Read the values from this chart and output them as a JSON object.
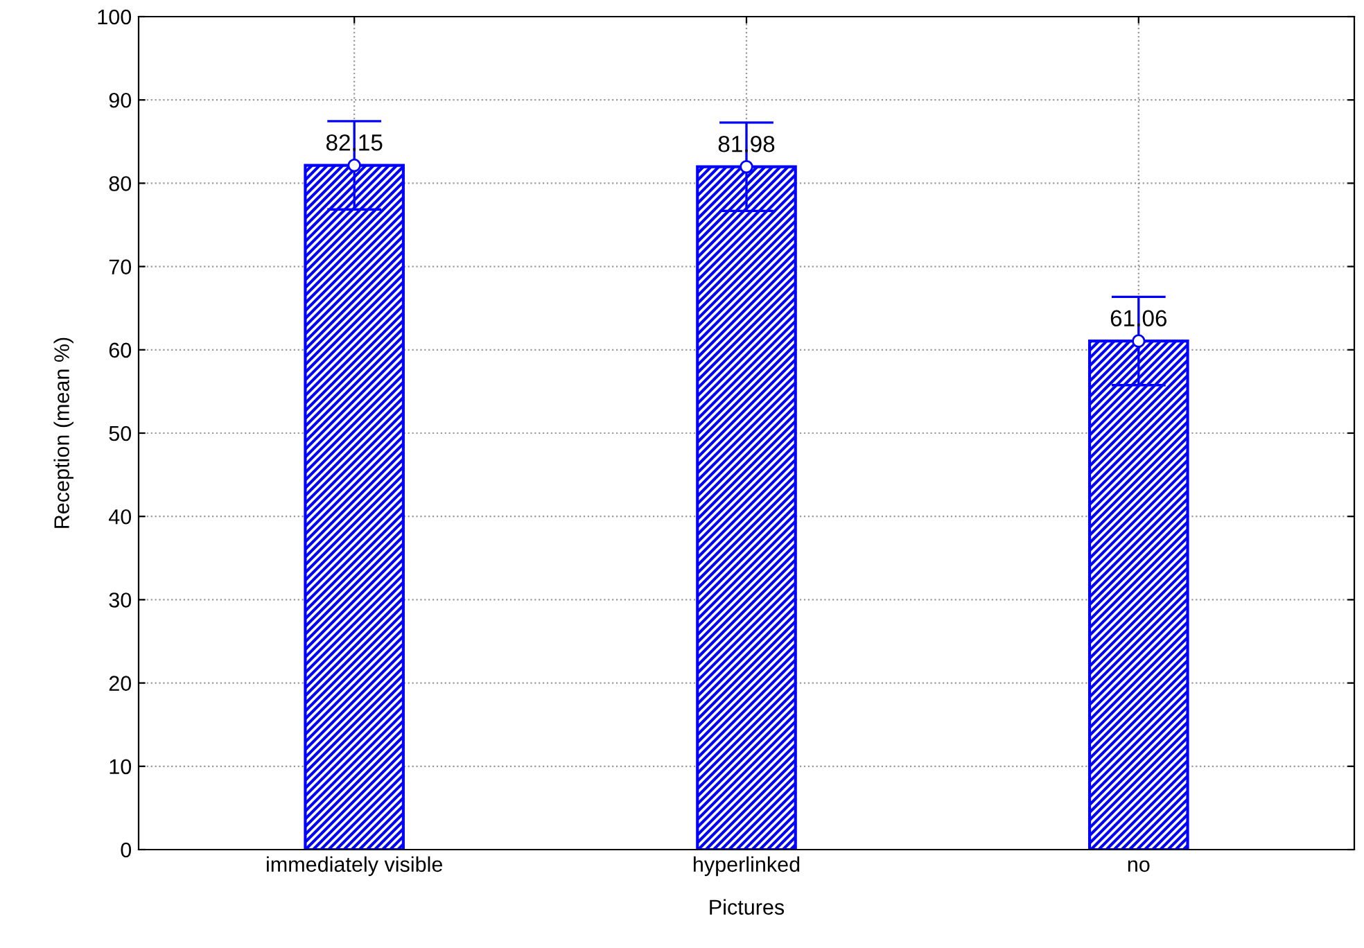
{
  "chart_data": {
    "type": "bar",
    "xlabel": "Pictures",
    "ylabel": "Reception (mean %)",
    "categories": [
      "immediately visible",
      "hyperlinked",
      "no"
    ],
    "series": [
      {
        "color": "#0000ff",
        "values": [
          82.15,
          81.98,
          61.06
        ],
        "errors": [
          5.3,
          5.3,
          5.3
        ],
        "value_labels": [
          "82.15",
          "81.98",
          "61.06"
        ]
      },
      {
        "type": "scatter",
        "color": "#ffffff",
        "x": [
          "immediately visible",
          "hyperlinked",
          "no"
        ],
        "values": [
          82.15,
          81.98,
          61.06
        ],
        "marker": "circle"
      }
    ],
    "ylim": [
      0,
      100
    ],
    "yticks": [
      0,
      10,
      20,
      30,
      40,
      50,
      60,
      70,
      80,
      90,
      100
    ],
    "grid": true
  }
}
